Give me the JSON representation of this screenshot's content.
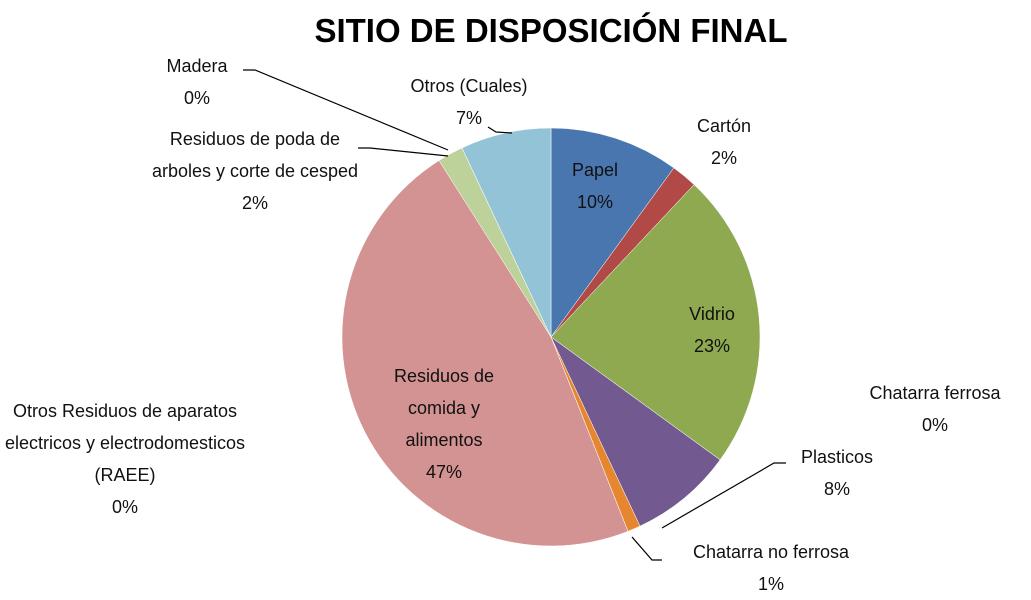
{
  "chart_data": {
    "type": "pie",
    "title": "SITIO DE DISPOSICIÓN FINAL",
    "categories": [
      "Papel",
      "Cartón",
      "Vidrio",
      "Chatarra ferrosa",
      "Plasticos",
      "Chatarra no ferrosa",
      "Otros Residuos de aparatos electricos y electrodomesticos (RAEE)",
      "Residuos de comida y alimentos",
      "Residuos de poda de arboles y corte de cesped",
      "Madera",
      "Otros (Cuales)"
    ],
    "values": [
      10,
      2,
      23,
      0,
      8,
      1,
      0,
      47,
      2,
      0,
      7
    ],
    "value_labels": [
      "10%",
      "2%",
      "23%",
      "0%",
      "8%",
      "1%",
      "0%",
      "47%",
      "2%",
      "0%",
      "7%"
    ],
    "colors": [
      "#4a76b0",
      "#b14a47",
      "#8ea94f",
      "#4198af",
      "#72598f",
      "#e6862f",
      "#9cb3d8",
      "#d39392",
      "#bdd19a",
      "#a898c0",
      "#93c3d6"
    ]
  }
}
